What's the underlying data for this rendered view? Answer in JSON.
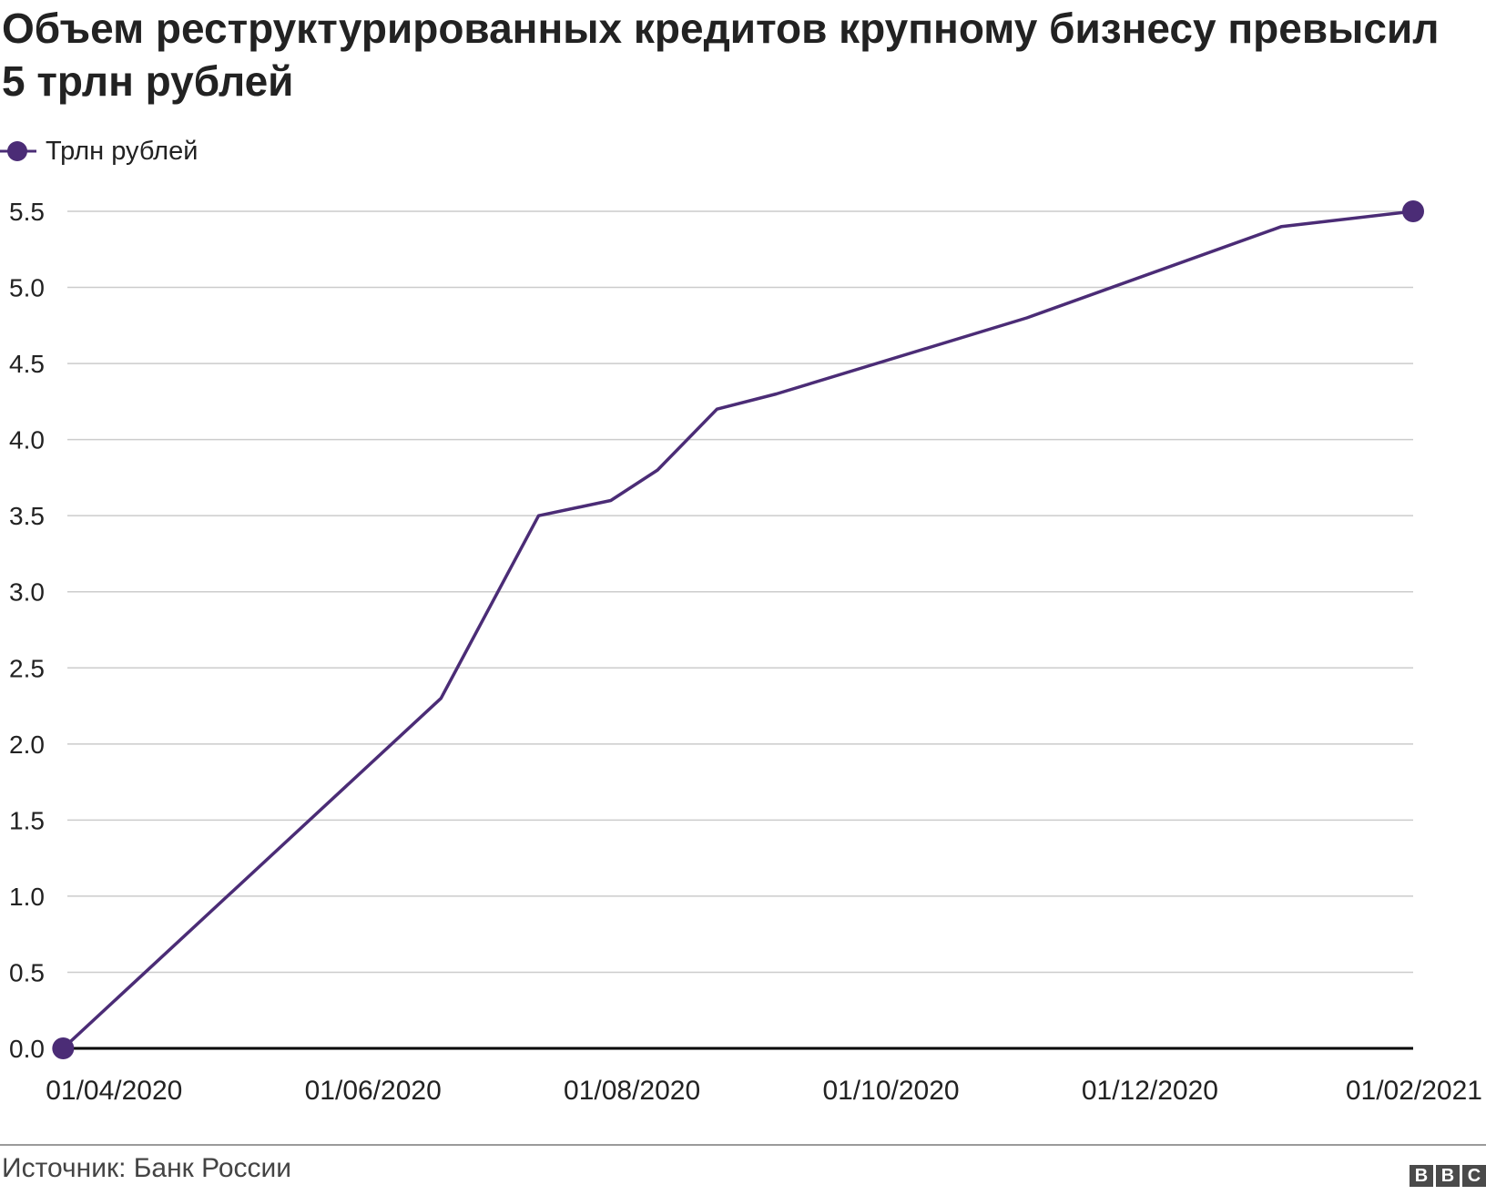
{
  "title": "Объем реструктурированных кредитов крупному бизнесу превысил 5 трлн рублей",
  "legend": {
    "label": "Трлн рублей"
  },
  "colors": {
    "series": "#4b2c76",
    "grid": "#cccccc",
    "axis": "#000000"
  },
  "chart_data": {
    "type": "line",
    "title": "Объем реструктурированных кредитов крупному бизнесу превысил 5 трлн рублей",
    "xlabel": "",
    "ylabel": "",
    "ylim": [
      0,
      5.5
    ],
    "y_ticks": [
      "0.0",
      "0.5",
      "1.0",
      "1.5",
      "2.0",
      "2.5",
      "3.0",
      "3.5",
      "4.0",
      "4.5",
      "5.0",
      "5.5"
    ],
    "x_range": [
      "2020-03-21",
      "2021-02-01"
    ],
    "x_ticks": [
      {
        "date": "2020-04-01",
        "label": "01/04/2020"
      },
      {
        "date": "2020-06-01",
        "label": "01/06/2020"
      },
      {
        "date": "2020-08-01",
        "label": "01/08/2020"
      },
      {
        "date": "2020-10-01",
        "label": "01/10/2020"
      },
      {
        "date": "2020-12-01",
        "label": "01/12/2020"
      },
      {
        "date": "2021-02-01",
        "label": "01/02/2021"
      }
    ],
    "grid": true,
    "legend_position": "top-left",
    "series": [
      {
        "name": "Трлн рублей",
        "points": [
          {
            "x": "2020-03-20",
            "y": 0.0
          },
          {
            "x": "2020-06-17",
            "y": 2.3
          },
          {
            "x": "2020-07-10",
            "y": 3.5
          },
          {
            "x": "2020-07-27",
            "y": 3.6
          },
          {
            "x": "2020-08-07",
            "y": 3.8
          },
          {
            "x": "2020-08-21",
            "y": 4.2
          },
          {
            "x": "2020-09-04",
            "y": 4.3
          },
          {
            "x": "2020-11-02",
            "y": 4.8
          },
          {
            "x": "2021-01-01",
            "y": 5.4
          },
          {
            "x": "2021-02-01",
            "y": 5.5
          }
        ]
      }
    ],
    "source": "Источник: Банк России"
  },
  "brand": {
    "letters": [
      "B",
      "B",
      "C"
    ]
  }
}
